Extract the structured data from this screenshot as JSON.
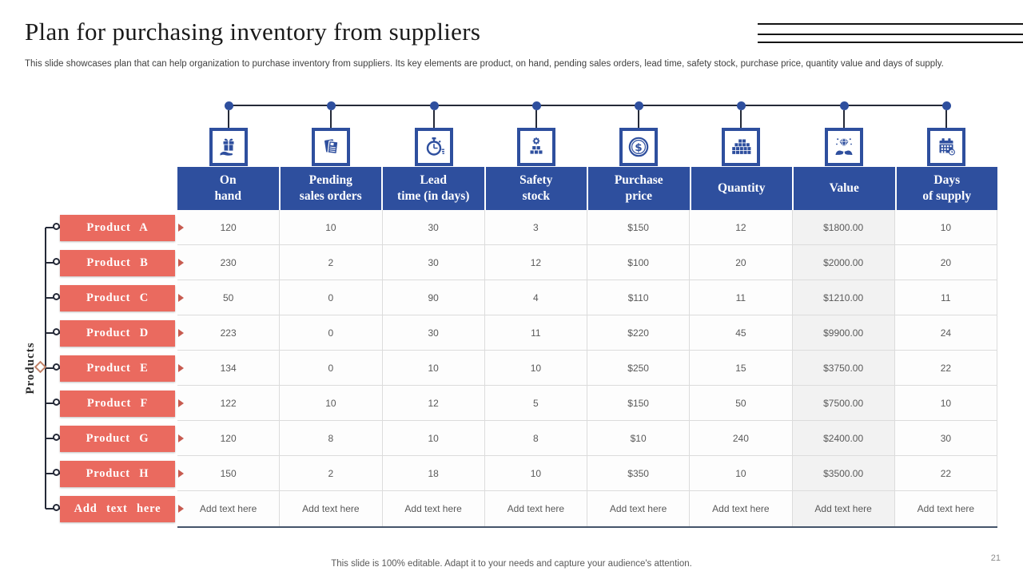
{
  "slide": {
    "title": "Plan for purchasing inventory from suppliers",
    "subtitle": "This slide showcases plan that can help organization to purchase inventory from suppliers. Its key elements are product, on hand, pending sales orders, lead time, safety stock, purchase price, quantity value and days of supply.",
    "footer": "This slide is 100% editable. Adapt it to your needs and capture your audience's attention.",
    "page_number": "21",
    "products_axis_label": "Products"
  },
  "colors": {
    "header_blue": "#2e4f9e",
    "product_red": "#ea6a5f",
    "connector_dark": "#252a38",
    "cell_text": "#595959",
    "grid_line": "#dcdcdc",
    "table_bottom_line": "#44546a"
  },
  "columns": [
    {
      "label": "On\nhand",
      "icon": "gift-on-hand-icon"
    },
    {
      "label": "Pending\nsales orders",
      "icon": "sales-orders-icon"
    },
    {
      "label": "Lead\ntime (in days)",
      "icon": "stopwatch-icon"
    },
    {
      "label": "Safety\nstock",
      "icon": "safety-stock-icon"
    },
    {
      "label": "Purchase\nprice",
      "icon": "dollar-coin-icon"
    },
    {
      "label": "Quantity",
      "icon": "quantity-stacks-icon"
    },
    {
      "label": "Value",
      "icon": "value-diamond-hands-icon"
    },
    {
      "label": "Days\nof supply",
      "icon": "calendar-icon"
    }
  ],
  "rows": [
    {
      "product": "Product A",
      "values": [
        "120",
        "10",
        "30",
        "3",
        "$150",
        "12",
        "$1800.00",
        "10"
      ]
    },
    {
      "product": "Product B",
      "values": [
        "230",
        "2",
        "30",
        "12",
        "$100",
        "20",
        "$2000.00",
        "20"
      ]
    },
    {
      "product": "Product C",
      "values": [
        "50",
        "0",
        "90",
        "4",
        "$110",
        "11",
        "$1210.00",
        "11"
      ]
    },
    {
      "product": "Product D",
      "values": [
        "223",
        "0",
        "30",
        "11",
        "$220",
        "45",
        "$9900.00",
        "24"
      ]
    },
    {
      "product": "Product E",
      "values": [
        "134",
        "0",
        "10",
        "10",
        "$250",
        "15",
        "$3750.00",
        "22"
      ]
    },
    {
      "product": "Product F",
      "values": [
        "122",
        "10",
        "12",
        "5",
        "$150",
        "50",
        "$7500.00",
        "10"
      ]
    },
    {
      "product": "Product G",
      "values": [
        "120",
        "8",
        "10",
        "8",
        "$10",
        "240",
        "$2400.00",
        "30"
      ]
    },
    {
      "product": "Product H",
      "values": [
        "150",
        "2",
        "18",
        "10",
        "$350",
        "10",
        "$3500.00",
        "22"
      ]
    },
    {
      "product": "Add text here",
      "values": [
        "Add text here",
        "Add text here",
        "Add text here",
        "Add text here",
        "Add text here",
        "Add text here",
        "Add text here",
        "Add text here"
      ]
    }
  ]
}
